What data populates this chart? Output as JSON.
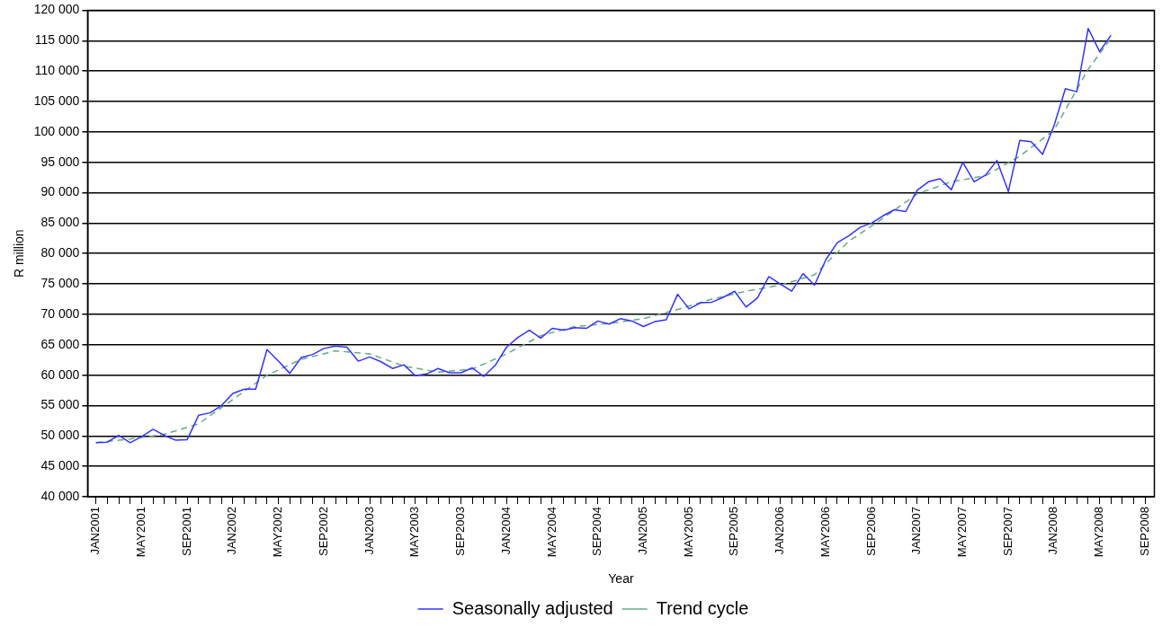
{
  "chart_data": {
    "type": "line",
    "xlabel": "Year",
    "ylabel": "R million",
    "xlim": [
      "2000-12-09",
      "2008-09-25"
    ],
    "xticks": [
      {
        "value": "2001-01",
        "label": "JAN2001"
      },
      {
        "value": "2001-02",
        "label": null
      },
      {
        "value": "2001-03",
        "label": null
      },
      {
        "value": "2001-04",
        "label": null
      },
      {
        "value": "2001-05",
        "label": "MAY2001"
      },
      {
        "value": "2001-06",
        "label": null
      },
      {
        "value": "2001-07",
        "label": null
      },
      {
        "value": "2001-08",
        "label": null
      },
      {
        "value": "2001-09",
        "label": "SEP2001"
      },
      {
        "value": "2001-10",
        "label": null
      },
      {
        "value": "2001-11",
        "label": null
      },
      {
        "value": "2001-12",
        "label": null
      },
      {
        "value": "2002-01",
        "label": "JAN2002"
      },
      {
        "value": "2002-02",
        "label": null
      },
      {
        "value": "2002-03",
        "label": null
      },
      {
        "value": "2002-04",
        "label": null
      },
      {
        "value": "2002-05",
        "label": "MAY2002"
      },
      {
        "value": "2002-06",
        "label": null
      },
      {
        "value": "2002-07",
        "label": null
      },
      {
        "value": "2002-08",
        "label": null
      },
      {
        "value": "2002-09",
        "label": "SEP2002"
      },
      {
        "value": "2002-10",
        "label": null
      },
      {
        "value": "2002-11",
        "label": null
      },
      {
        "value": "2002-12",
        "label": null
      },
      {
        "value": "2003-01",
        "label": "JAN2003"
      },
      {
        "value": "2003-02",
        "label": null
      },
      {
        "value": "2003-03",
        "label": null
      },
      {
        "value": "2003-04",
        "label": null
      },
      {
        "value": "2003-05",
        "label": "MAY2003"
      },
      {
        "value": "2003-06",
        "label": null
      },
      {
        "value": "2003-07",
        "label": null
      },
      {
        "value": "2003-08",
        "label": null
      },
      {
        "value": "2003-09",
        "label": "SEP2003"
      },
      {
        "value": "2003-10",
        "label": null
      },
      {
        "value": "2003-11",
        "label": null
      },
      {
        "value": "2003-12",
        "label": null
      },
      {
        "value": "2004-01",
        "label": "JAN2004"
      },
      {
        "value": "2004-02",
        "label": null
      },
      {
        "value": "2004-03",
        "label": null
      },
      {
        "value": "2004-04",
        "label": null
      },
      {
        "value": "2004-05",
        "label": "MAY2004"
      },
      {
        "value": "2004-06",
        "label": null
      },
      {
        "value": "2004-07",
        "label": null
      },
      {
        "value": "2004-08",
        "label": null
      },
      {
        "value": "2004-09",
        "label": "SEP2004"
      },
      {
        "value": "2004-10",
        "label": null
      },
      {
        "value": "2004-11",
        "label": null
      },
      {
        "value": "2004-12",
        "label": null
      },
      {
        "value": "2005-01",
        "label": "JAN2005"
      },
      {
        "value": "2005-02",
        "label": null
      },
      {
        "value": "2005-03",
        "label": null
      },
      {
        "value": "2005-04",
        "label": null
      },
      {
        "value": "2005-05",
        "label": "MAY2005"
      },
      {
        "value": "2005-06",
        "label": null
      },
      {
        "value": "2005-07",
        "label": null
      },
      {
        "value": "2005-08",
        "label": null
      },
      {
        "value": "2005-09",
        "label": "SEP2005"
      },
      {
        "value": "2005-10",
        "label": null
      },
      {
        "value": "2005-11",
        "label": null
      },
      {
        "value": "2005-12",
        "label": null
      },
      {
        "value": "2006-01",
        "label": "JAN2006"
      },
      {
        "value": "2006-02",
        "label": null
      },
      {
        "value": "2006-03",
        "label": null
      },
      {
        "value": "2006-04",
        "label": null
      },
      {
        "value": "2006-05",
        "label": "MAY2006"
      },
      {
        "value": "2006-06",
        "label": null
      },
      {
        "value": "2006-07",
        "label": null
      },
      {
        "value": "2006-08",
        "label": null
      },
      {
        "value": "2006-09",
        "label": "SEP2006"
      },
      {
        "value": "2006-10",
        "label": null
      },
      {
        "value": "2006-11",
        "label": null
      },
      {
        "value": "2006-12",
        "label": null
      },
      {
        "value": "2007-01",
        "label": "JAN2007"
      },
      {
        "value": "2007-02",
        "label": null
      },
      {
        "value": "2007-03",
        "label": null
      },
      {
        "value": "2007-04",
        "label": null
      },
      {
        "value": "2007-05",
        "label": "MAY2007"
      },
      {
        "value": "2007-06",
        "label": null
      },
      {
        "value": "2007-07",
        "label": null
      },
      {
        "value": "2007-08",
        "label": null
      },
      {
        "value": "2007-09",
        "label": "SEP2007"
      },
      {
        "value": "2007-10",
        "label": null
      },
      {
        "value": "2007-11",
        "label": null
      },
      {
        "value": "2007-12",
        "label": null
      },
      {
        "value": "2008-01",
        "label": "JAN2008"
      },
      {
        "value": "2008-02",
        "label": null
      },
      {
        "value": "2008-03",
        "label": null
      },
      {
        "value": "2008-04",
        "label": null
      },
      {
        "value": "2008-05",
        "label": "MAY2008"
      },
      {
        "value": "2008-06",
        "label": null
      },
      {
        "value": "2008-07",
        "label": null
      },
      {
        "value": "2008-08",
        "label": null
      },
      {
        "value": "2008-09",
        "label": "SEP2008"
      }
    ],
    "ylim": [
      40000,
      120000
    ],
    "yticks": [
      {
        "value": 40000,
        "label": "40 000"
      },
      {
        "value": 45000,
        "label": "45 000"
      },
      {
        "value": 50000,
        "label": "50 000"
      },
      {
        "value": 55000,
        "label": "55 000"
      },
      {
        "value": 60000,
        "label": "60 000"
      },
      {
        "value": 65000,
        "label": "65 000"
      },
      {
        "value": 70000,
        "label": "70 000"
      },
      {
        "value": 75000,
        "label": "75 000"
      },
      {
        "value": 80000,
        "label": "80 000"
      },
      {
        "value": 85000,
        "label": "85 000"
      },
      {
        "value": 90000,
        "label": "90 000"
      },
      {
        "value": 95000,
        "label": "95 000"
      },
      {
        "value": 100000,
        "label": "100 000"
      },
      {
        "value": 105000,
        "label": "105 000"
      },
      {
        "value": 110000,
        "label": "110 000"
      },
      {
        "value": 115000,
        "label": "115 000"
      },
      {
        "value": 120000,
        "label": "120 000"
      }
    ],
    "grid": "y",
    "legend": "bottom",
    "marker": "none",
    "series": [
      {
        "name": "Seasonally adjusted",
        "color": "#3333ff",
        "line_style": "solid",
        "x": [
          "2001-01",
          "2001-02",
          "2001-03",
          "2001-04",
          "2001-05",
          "2001-06",
          "2001-07",
          "2001-08",
          "2001-09",
          "2001-10",
          "2001-11",
          "2001-12",
          "2002-01",
          "2002-02",
          "2002-03",
          "2002-04",
          "2002-05",
          "2002-06",
          "2002-07",
          "2002-08",
          "2002-09",
          "2002-10",
          "2002-11",
          "2002-12",
          "2003-01",
          "2003-02",
          "2003-03",
          "2003-04",
          "2003-05",
          "2003-06",
          "2003-07",
          "2003-08",
          "2003-09",
          "2003-10",
          "2003-11",
          "2003-12",
          "2004-01",
          "2004-02",
          "2004-03",
          "2004-04",
          "2004-05",
          "2004-06",
          "2004-07",
          "2004-08",
          "2004-09",
          "2004-10",
          "2004-11",
          "2004-12",
          "2005-01",
          "2005-02",
          "2005-03",
          "2005-04",
          "2005-05",
          "2005-06",
          "2005-07",
          "2005-08",
          "2005-09",
          "2005-10",
          "2005-11",
          "2005-12",
          "2006-01",
          "2006-02",
          "2006-03",
          "2006-04",
          "2006-05",
          "2006-06",
          "2006-07",
          "2006-08",
          "2006-09",
          "2006-10",
          "2006-11",
          "2006-12",
          "2007-01",
          "2007-02",
          "2007-03",
          "2007-04",
          "2007-05",
          "2007-06",
          "2007-07",
          "2007-08",
          "2007-09",
          "2007-10",
          "2007-11",
          "2007-12",
          "2008-01",
          "2008-02",
          "2008-03",
          "2008-04",
          "2008-05",
          "2008-06"
        ],
        "values": [
          48900,
          49000,
          50100,
          48900,
          49900,
          51100,
          50100,
          49300,
          49400,
          53400,
          53800,
          55000,
          57000,
          57700,
          57700,
          64200,
          62300,
          60300,
          62900,
          63400,
          64400,
          64800,
          64600,
          62300,
          63000,
          62200,
          61100,
          61700,
          59900,
          60200,
          61100,
          60400,
          60400,
          61200,
          59800,
          61600,
          64600,
          66200,
          67400,
          66100,
          67700,
          67400,
          67800,
          67700,
          68900,
          68400,
          69300,
          68900,
          68000,
          68800,
          69100,
          73300,
          70900,
          71900,
          72000,
          72800,
          73800,
          71200,
          72700,
          76200,
          75000,
          73800,
          76700,
          74800,
          79000,
          81800,
          82900,
          84300,
          85000,
          86200,
          87200,
          86900,
          90400,
          91800,
          92300,
          90500,
          95000,
          91800,
          92900,
          95300,
          90200,
          98600,
          98400,
          96300,
          101000,
          107100,
          106600,
          117000,
          113200,
          115900
        ]
      },
      {
        "name": "Trend cycle",
        "color": "#66aa88",
        "line_style": "dashed",
        "x": [
          "2001-01",
          "2001-04",
          "2001-07",
          "2001-10",
          "2002-01",
          "2002-04",
          "2002-07",
          "2002-10",
          "2003-01",
          "2003-04",
          "2003-07",
          "2003-10",
          "2004-01",
          "2004-04",
          "2004-07",
          "2004-10",
          "2005-01",
          "2005-04",
          "2005-07",
          "2005-10",
          "2006-01",
          "2006-04",
          "2006-07",
          "2006-10",
          "2007-01",
          "2007-04",
          "2007-07",
          "2007-10",
          "2008-01",
          "2008-04",
          "2008-06"
        ],
        "values": [
          48900,
          49500,
          50300,
          52000,
          56000,
          60000,
          62600,
          64000,
          63500,
          61500,
          60500,
          61000,
          63500,
          66500,
          68000,
          68500,
          69300,
          70800,
          72500,
          73800,
          74800,
          76500,
          82000,
          85800,
          89800,
          91800,
          92800,
          96000,
          100300,
          110300,
          115400
        ]
      }
    ]
  }
}
